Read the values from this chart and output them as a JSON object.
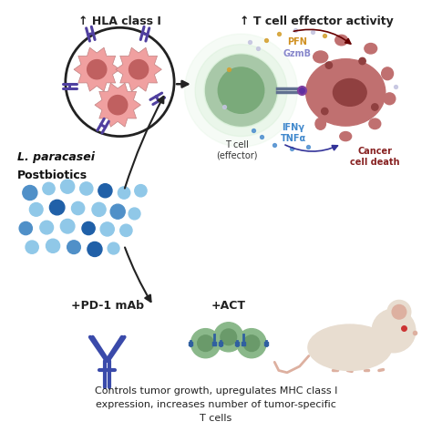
{
  "background_color": "#ffffff",
  "top_left_label": "↑ HLA class I",
  "top_right_label": "↑ T cell effector activity",
  "left_middle_label_line1": "L. paracasei",
  "left_middle_label_line2": "Postbiotics",
  "bottom_label_pd1": "+PD-1 mAb",
  "bottom_label_act": "+ACT",
  "bottom_text": "Controls tumor growth, upregulates MHC class I\nexpression, increases number of tumor-specific\nT cells",
  "pfn_label": "PFN",
  "gzmb_label": "GzmB",
  "ifng_label": "IFNγ",
  "tnfa_label": "TNFα",
  "tcell_label": "T cell\n(effector)",
  "cancer_label": "Cancer\ncell death",
  "cell_color": "#f0a0a0",
  "cell_nucleus_color": "#c06060",
  "cell_spike_color": "#e8b0b0",
  "tcell_outer_color": "#a8c8a8",
  "tcell_inner_color": "#7aaa7a",
  "tcell_core_color": "#5a9a5a",
  "tcell_glow_color": "#c8eac8",
  "cancer_cell_color": "#c07070",
  "cancer_nucleus_color": "#904040",
  "hla_color": "#5040a0",
  "dot_light": "#90c8e8",
  "dot_medium": "#5090c8",
  "dot_dark": "#2060a8",
  "antibody_color": "#3a4aaa",
  "act_cell_color": "#8ab88a",
  "act_cell_inner": "#6a9a6a",
  "act_line_color": "#3060a0",
  "pfn_color": "#d09020",
  "gzmb_color": "#8888cc",
  "ifng_color": "#4088cc",
  "tnfa_color": "#4088cc",
  "arrow_color": "#222222",
  "mouse_body_color": "#e8ddd0",
  "mouse_pink_color": "#ddb0a0"
}
